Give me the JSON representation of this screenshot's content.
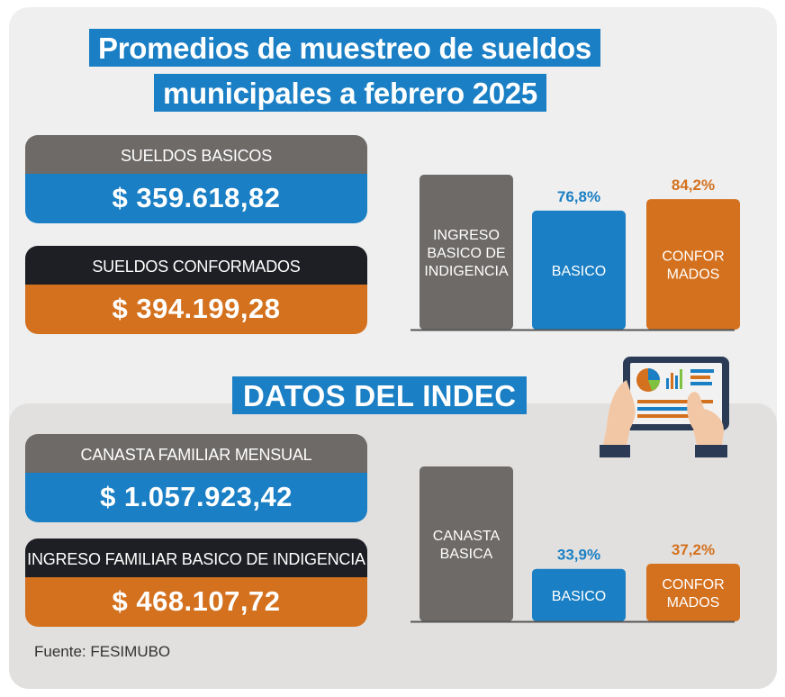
{
  "title": {
    "line1": "Promedios de muestreo de sueldos",
    "line2": "municipales a febrero 2025"
  },
  "boxes": {
    "sueldos_basicos": {
      "label": "SUELDOS BASICOS",
      "value": "$ 359.618,82"
    },
    "sueldos_conformados": {
      "label": "SUELDOS CONFORMADOS",
      "value": "$ 394.199,28"
    },
    "canasta_familiar": {
      "label": "CANASTA FAMILIAR MENSUAL",
      "value": "$ 1.057.923,42"
    },
    "ingreso_indigencia": {
      "label": "INGRESO FAMILIAR BASICO DE INDIGENCIA",
      "value": "$ 468.107,72"
    }
  },
  "indec_title": "DATOS DEL INDEC",
  "source": "Fuente: FESIMUBO",
  "colors": {
    "blue": "#1a7fc4",
    "orange": "#d4711e",
    "gray": "#6d6a68",
    "black": "#1d1f24"
  },
  "chart_data": [
    {
      "type": "bar",
      "categories": [
        [
          "INGRESO",
          "BASICO DE",
          "INDIGENCIA"
        ],
        [
          "BASICO"
        ],
        [
          "CONFOR",
          "MADOS"
        ]
      ],
      "values": [
        100,
        76.8,
        84.2
      ],
      "value_labels": [
        "",
        "76,8%",
        "84,2%"
      ],
      "bar_colors": [
        "#6d6a68",
        "#1a7fc4",
        "#d4711e"
      ],
      "ylim": [
        0,
        100
      ]
    },
    {
      "type": "bar",
      "categories": [
        [
          "CANASTA",
          "BASICA"
        ],
        [
          "BASICO"
        ],
        [
          "CONFOR",
          "MADOS"
        ]
      ],
      "values": [
        100,
        33.9,
        37.2
      ],
      "value_labels": [
        "",
        "33,9%",
        "37,2%"
      ],
      "bar_colors": [
        "#6d6a68",
        "#1a7fc4",
        "#d4711e"
      ],
      "ylim": [
        0,
        100
      ]
    }
  ]
}
